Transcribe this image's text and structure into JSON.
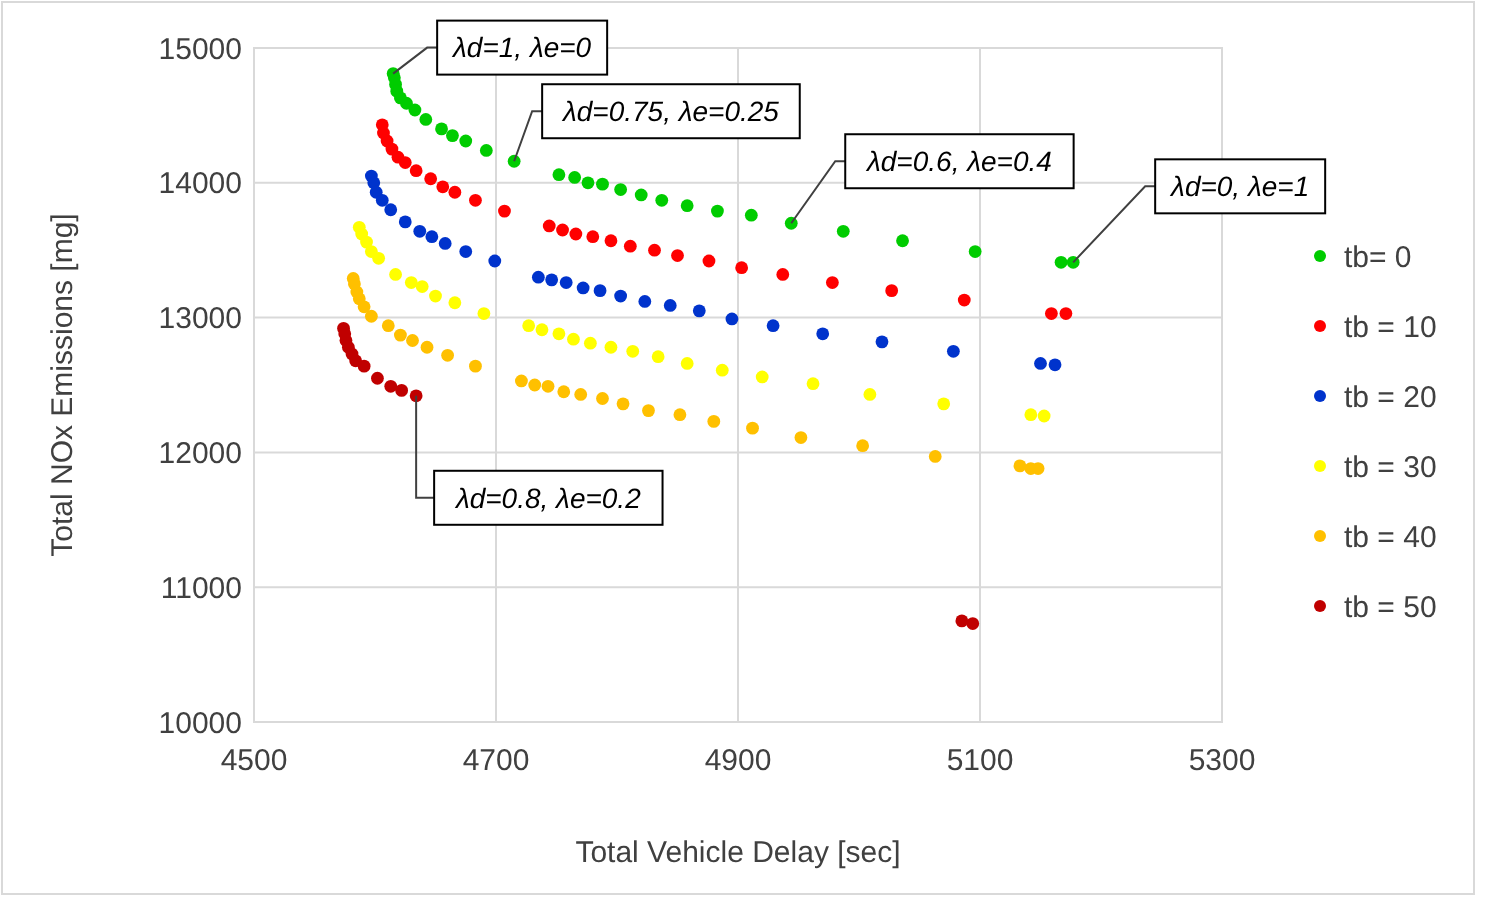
{
  "chart_data": {
    "type": "scatter",
    "xlabel": "Total Vehicle Delay [sec]",
    "ylabel": "Total NOx Emissions [mg]",
    "xlim": [
      4500,
      5300
    ],
    "xticks": [
      4500,
      4700,
      4900,
      5100,
      5300
    ],
    "ylim": [
      10000,
      15000
    ],
    "yticks": [
      10000,
      11000,
      12000,
      13000,
      14000,
      15000
    ],
    "grid": true,
    "legend": "right",
    "marker": "circle",
    "series": [
      {
        "name": "tb= 0",
        "color": "#00cc00",
        "x": [
          4615,
          4616,
          4617,
          4618,
          4621,
          4626,
          4633,
          4642,
          4655,
          4664,
          4675,
          4692,
          4715,
          4752,
          4765,
          4776,
          4788,
          4803,
          4820,
          4837,
          4858,
          4883,
          4911,
          4944,
          4987,
          5036,
          5096,
          5167,
          5177
        ],
        "values": [
          14810,
          14780,
          14730,
          14680,
          14630,
          14590,
          14540,
          14470,
          14400,
          14350,
          14310,
          14240,
          14160,
          14060,
          14040,
          14000,
          13990,
          13950,
          13910,
          13870,
          13830,
          13790,
          13760,
          13700,
          13640,
          13570,
          13490,
          13410,
          13410
        ]
      },
      {
        "name": "tb = 10",
        "color": "#ff0000",
        "x": [
          4606,
          4607,
          4610,
          4614,
          4619,
          4625,
          4634,
          4646,
          4656,
          4666,
          4683,
          4707,
          4744,
          4755,
          4766,
          4780,
          4795,
          4811,
          4831,
          4850,
          4876,
          4903,
          4937,
          4978,
          5027,
          5087,
          5159,
          5171
        ],
        "values": [
          14430,
          14370,
          14310,
          14250,
          14190,
          14150,
          14090,
          14030,
          13970,
          13930,
          13870,
          13790,
          13680,
          13650,
          13620,
          13600,
          13570,
          13530,
          13500,
          13460,
          13420,
          13370,
          13320,
          13260,
          13200,
          13130,
          13030,
          13030
        ]
      },
      {
        "name": "tb = 20",
        "color": "#0033cc",
        "x": [
          4597,
          4599,
          4601,
          4606,
          4613,
          4625,
          4637,
          4647,
          4658,
          4675,
          4699,
          4735,
          4746,
          4758,
          4772,
          4786,
          4803,
          4823,
          4844,
          4868,
          4895,
          4929,
          4970,
          5019,
          5078,
          5150,
          5162
        ],
        "values": [
          14050,
          14000,
          13930,
          13870,
          13800,
          13710,
          13640,
          13600,
          13550,
          13490,
          13420,
          13300,
          13280,
          13260,
          13220,
          13200,
          13160,
          13120,
          13090,
          13050,
          12990,
          12940,
          12880,
          12820,
          12750,
          12660,
          12650
        ]
      },
      {
        "name": "tb = 30",
        "color": "#ffff00",
        "x": [
          4587,
          4589,
          4593,
          4597,
          4603,
          4617,
          4630,
          4639,
          4650,
          4666,
          4690,
          4727,
          4738,
          4752,
          4764,
          4778,
          4795,
          4813,
          4834,
          4858,
          4887,
          4920,
          4962,
          5009,
          5070,
          5142,
          5153
        ],
        "values": [
          13670,
          13620,
          13560,
          13490,
          13440,
          13320,
          13260,
          13230,
          13160,
          13110,
          13030,
          12940,
          12910,
          12880,
          12840,
          12810,
          12780,
          12750,
          12710,
          12660,
          12610,
          12560,
          12510,
          12430,
          12360,
          12280,
          12270
        ]
      },
      {
        "name": "tb = 40",
        "color": "#ffc000",
        "x": [
          4582,
          4583,
          4585,
          4587,
          4591,
          4597,
          4611,
          4621,
          4631,
          4643,
          4660,
          4683,
          4721,
          4732,
          4743,
          4756,
          4770,
          4788,
          4805,
          4826,
          4852,
          4880,
          4912,
          4952,
          5003,
          5063,
          5133,
          5142,
          5148
        ],
        "values": [
          13290,
          13250,
          13190,
          13140,
          13080,
          13010,
          12940,
          12870,
          12830,
          12780,
          12720,
          12640,
          12530,
          12500,
          12490,
          12450,
          12430,
          12400,
          12360,
          12310,
          12280,
          12230,
          12180,
          12110,
          12050,
          11970,
          11900,
          11880,
          11880
        ]
      },
      {
        "name": "tb = 50",
        "color": "#c00000",
        "x": [
          4574,
          4575,
          4576,
          4578,
          4581,
          4584,
          4591,
          4602,
          4613,
          4622,
          4634,
          5085,
          5094
        ],
        "values": [
          12920,
          12880,
          12830,
          12780,
          12730,
          12680,
          12640,
          12550,
          12490,
          12460,
          12420,
          10750,
          10730
        ]
      }
    ],
    "annotations": [
      {
        "text": "λd=1, λe=0",
        "x": 4615,
        "y": 14810
      },
      {
        "text": "λd=0.75, λe=0.25",
        "x": 4715,
        "y": 14160
      },
      {
        "text": "λd=0.6, λe=0.4",
        "x": 4944,
        "y": 13700
      },
      {
        "text": "λd=0, λe=1",
        "x": 5177,
        "y": 13410
      },
      {
        "text": "λd=0.8, λe=0.2",
        "x": 4634,
        "y": 12420
      }
    ]
  }
}
